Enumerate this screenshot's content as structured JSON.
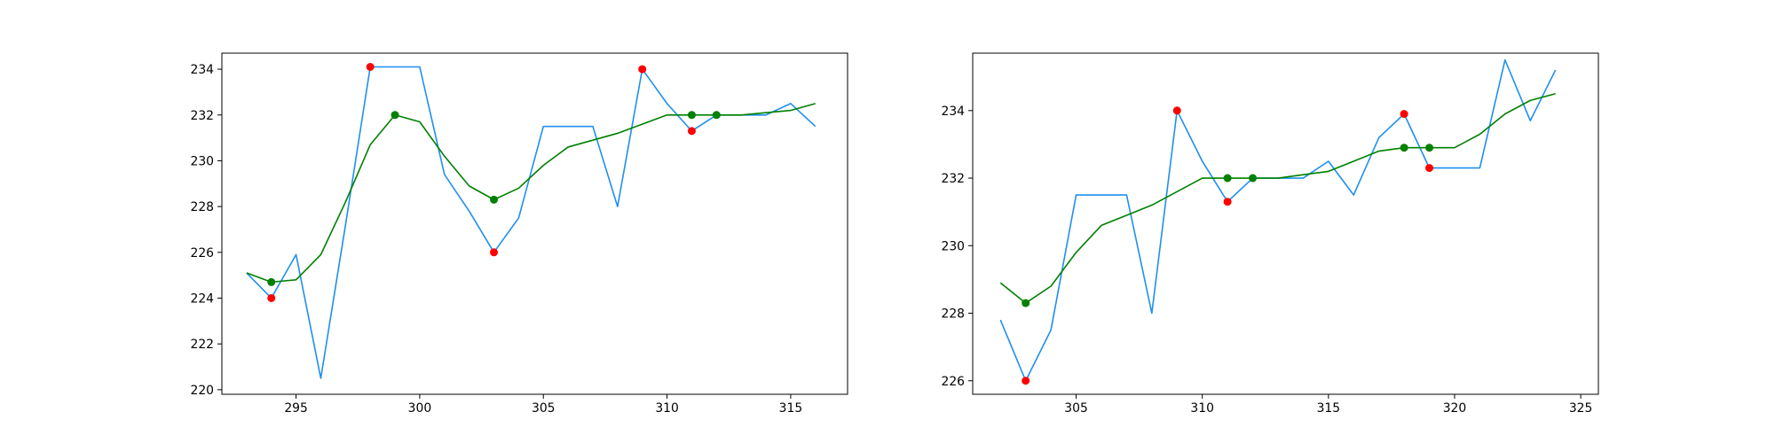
{
  "colors": {
    "price_line": "#1f8ff0",
    "smooth_line": "#008000",
    "extrema_marker": "#ff0000",
    "turning_marker": "#008000",
    "axes": "#000000",
    "background": "#ffffff"
  },
  "chart_data": [
    {
      "type": "line",
      "grid": false,
      "legend": "none",
      "title": "",
      "xlabel": "",
      "ylabel": "",
      "xlim": [
        292,
        317.3
      ],
      "ylim": [
        219.8,
        234.7
      ],
      "xticks": [
        295,
        300,
        305,
        310,
        315
      ],
      "yticks": [
        220,
        222,
        224,
        226,
        228,
        230,
        232,
        234
      ],
      "series": [
        {
          "x": [
            293,
            294,
            295,
            296,
            297,
            298,
            299,
            300,
            301,
            302,
            303,
            304,
            305,
            306,
            307,
            308,
            309,
            310,
            311,
            312,
            313,
            314,
            315,
            316
          ],
          "y": [
            225.1,
            224.0,
            225.9,
            220.5,
            227.2,
            234.1,
            234.1,
            234.1,
            229.4,
            227.8,
            226.0,
            227.5,
            231.5,
            231.5,
            231.5,
            228.0,
            234.0,
            232.5,
            231.3,
            232.0,
            232.0,
            232.0,
            232.5,
            231.5
          ]
        },
        {
          "x": [
            293,
            294,
            295,
            296,
            297,
            298,
            299,
            300,
            301,
            302,
            303,
            304,
            305,
            306,
            307,
            308,
            309,
            310,
            311,
            312,
            313,
            314,
            315,
            316
          ],
          "y": [
            225.1,
            224.7,
            224.8,
            225.9,
            228.2,
            230.7,
            232.0,
            231.7,
            230.2,
            228.9,
            228.3,
            228.8,
            229.8,
            230.6,
            230.9,
            231.2,
            231.6,
            232.0,
            232.0,
            232.0,
            232.0,
            232.1,
            232.2,
            232.5
          ]
        }
      ],
      "extrema_points": {
        "x": [
          294,
          298,
          303,
          309,
          311
        ],
        "y": [
          224.0,
          234.1,
          226.0,
          234.0,
          231.3
        ]
      },
      "turning_points": {
        "x": [
          294,
          299,
          303,
          311,
          312
        ],
        "y": [
          224.7,
          232.0,
          228.3,
          232.0,
          232.0
        ]
      }
    },
    {
      "type": "line",
      "grid": false,
      "legend": "none",
      "title": "",
      "xlabel": "",
      "ylabel": "",
      "xlim": [
        300.9,
        325.7
      ],
      "ylim": [
        225.6,
        235.7
      ],
      "xticks": [
        305,
        310,
        315,
        320,
        325
      ],
      "yticks": [
        226,
        228,
        230,
        232,
        234
      ],
      "series": [
        {
          "x": [
            302,
            303,
            304,
            305,
            306,
            307,
            308,
            309,
            310,
            311,
            312,
            313,
            314,
            315,
            316,
            317,
            318,
            319,
            320,
            321,
            322,
            323,
            324
          ],
          "y": [
            227.8,
            226.0,
            227.5,
            231.5,
            231.5,
            231.5,
            228.0,
            234.0,
            232.5,
            231.3,
            232.0,
            232.0,
            232.0,
            232.5,
            231.5,
            233.2,
            233.9,
            232.3,
            232.3,
            232.3,
            235.5,
            233.7,
            235.2
          ]
        },
        {
          "x": [
            302,
            303,
            304,
            305,
            306,
            307,
            308,
            309,
            310,
            311,
            312,
            313,
            314,
            315,
            316,
            317,
            318,
            319,
            320,
            321,
            322,
            323,
            324
          ],
          "y": [
            228.9,
            228.3,
            228.8,
            229.8,
            230.6,
            230.9,
            231.2,
            231.6,
            232.0,
            232.0,
            232.0,
            232.0,
            232.1,
            232.2,
            232.5,
            232.8,
            232.9,
            232.9,
            232.9,
            233.3,
            233.9,
            234.3,
            234.5
          ]
        }
      ],
      "extrema_points": {
        "x": [
          303,
          309,
          311,
          318,
          319
        ],
        "y": [
          226.0,
          234.0,
          231.3,
          233.9,
          232.3
        ]
      },
      "turning_points": {
        "x": [
          303,
          311,
          312,
          318,
          319
        ],
        "y": [
          228.3,
          232.0,
          232.0,
          232.9,
          232.9
        ]
      }
    }
  ]
}
